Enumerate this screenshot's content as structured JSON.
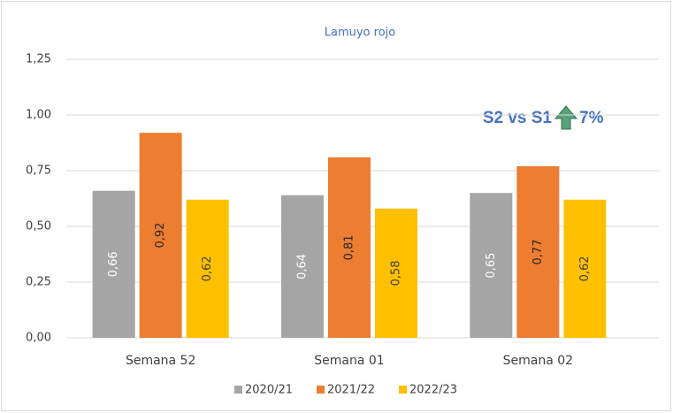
{
  "chart_data": {
    "type": "bar",
    "title": "Lamuyo rojo",
    "categories": [
      "Semana 52",
      "Semana 01",
      "Semana 02"
    ],
    "series": [
      {
        "name": "2020/21",
        "color": "#a5a5a5",
        "values": [
          0.66,
          0.64,
          0.65
        ],
        "value_labels": [
          "0,66",
          "0,64",
          "0,65"
        ]
      },
      {
        "name": "2021/22",
        "color": "#ed7d31",
        "values": [
          0.92,
          0.81,
          0.77
        ],
        "value_labels": [
          "0,92",
          "0,81",
          "0,77"
        ]
      },
      {
        "name": "2022/23",
        "color": "#ffc000",
        "values": [
          0.62,
          0.58,
          0.62
        ],
        "value_labels": [
          "0,62",
          "0,58",
          "0,62"
        ]
      }
    ],
    "ylim": [
      0,
      1.25
    ],
    "yticks": [
      {
        "value": 0,
        "label": "0,00"
      },
      {
        "value": 0.25,
        "label": "0,25"
      },
      {
        "value": 0.5,
        "label": "0,50"
      },
      {
        "value": 0.75,
        "label": "0,75"
      },
      {
        "value": 1,
        "label": "1,00"
      },
      {
        "value": 1.25,
        "label": "1,25"
      }
    ],
    "grid": true,
    "legend": "bottom",
    "annotations": [
      "S2 vs S1",
      "7%"
    ]
  }
}
